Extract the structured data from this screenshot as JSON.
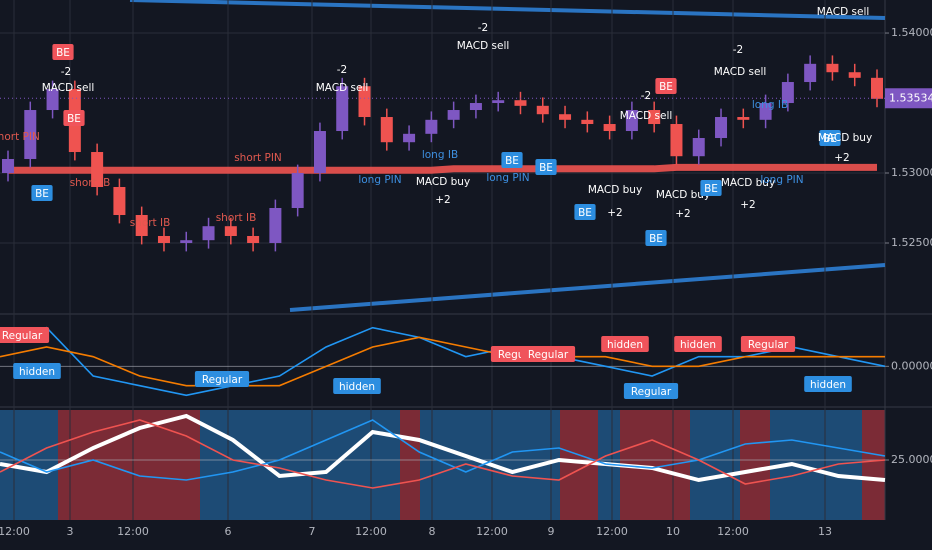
{
  "chart_data": [
    {
      "type": "candlestick",
      "open": [
        1.53,
        1.531,
        1.5345,
        1.536,
        1.5315,
        1.529,
        1.527,
        1.5255,
        1.525,
        1.5252,
        1.5262,
        1.5255,
        1.525,
        1.5275,
        1.53,
        1.533,
        1.5362,
        1.534,
        1.5322,
        1.5328,
        1.5338,
        1.5345,
        1.535,
        1.5352,
        1.5348,
        1.5342,
        1.5338,
        1.5335,
        1.533,
        1.5345,
        1.5335,
        1.5312,
        1.5325,
        1.534,
        1.5338,
        1.535,
        1.5365,
        1.5378,
        1.5372,
        1.5368
      ],
      "high": [
        1.5316,
        1.5351,
        1.5366,
        1.5366,
        1.5321,
        1.5296,
        1.5276,
        1.5261,
        1.5258,
        1.5268,
        1.5268,
        1.5261,
        1.5281,
        1.5306,
        1.5336,
        1.5368,
        1.5368,
        1.5346,
        1.5334,
        1.5344,
        1.5351,
        1.5356,
        1.5358,
        1.5358,
        1.5354,
        1.5348,
        1.5344,
        1.5341,
        1.5351,
        1.5351,
        1.5341,
        1.5331,
        1.5346,
        1.5346,
        1.5356,
        1.5371,
        1.5384,
        1.5384,
        1.5378,
        1.5374
      ],
      "low": [
        1.5294,
        1.5304,
        1.5339,
        1.5309,
        1.5284,
        1.5264,
        1.5249,
        1.5244,
        1.5244,
        1.5246,
        1.5249,
        1.5244,
        1.5244,
        1.5269,
        1.5294,
        1.5324,
        1.5334,
        1.5316,
        1.5316,
        1.5322,
        1.5332,
        1.5339,
        1.5344,
        1.5342,
        1.5336,
        1.5332,
        1.5329,
        1.5324,
        1.5324,
        1.5329,
        1.5306,
        1.5306,
        1.5319,
        1.5332,
        1.5332,
        1.5344,
        1.5359,
        1.5366,
        1.5362,
        1.5347
      ],
      "close": [
        1.531,
        1.5345,
        1.536,
        1.5315,
        1.529,
        1.527,
        1.5255,
        1.525,
        1.5252,
        1.5262,
        1.5255,
        1.525,
        1.5275,
        1.53,
        1.533,
        1.5362,
        1.534,
        1.5322,
        1.5328,
        1.5338,
        1.5345,
        1.535,
        1.5352,
        1.5348,
        1.5342,
        1.5338,
        1.5335,
        1.533,
        1.5345,
        1.5335,
        1.5312,
        1.5325,
        1.534,
        1.5338,
        1.535,
        1.5365,
        1.5378,
        1.5372,
        1.5368,
        1.5353
      ],
      "up_color": "#7e57c2",
      "down_color": "#ef5350",
      "ma": {
        "color": "#f05350",
        "values": [
          1.5302,
          1.5302,
          1.5302,
          1.5302,
          1.5302,
          1.5302,
          1.5302,
          1.5302,
          1.5302,
          1.5302,
          1.5302,
          1.5302,
          1.5302,
          1.5302,
          1.5302,
          1.5302,
          1.5302,
          1.5302,
          1.5302,
          1.5302,
          1.5303,
          1.5303,
          1.5303,
          1.5303,
          1.5303,
          1.5303,
          1.5303,
          1.5303,
          1.5303,
          1.5303,
          1.5304,
          1.5304,
          1.5304,
          1.5304,
          1.5304,
          1.5304,
          1.5304,
          1.5304,
          1.5304,
          1.5304
        ]
      },
      "ylim": [
        1.52007,
        1.54236
      ],
      "yticks": [
        {
          "value": 1.525,
          "label": "1.52500"
        },
        {
          "value": 1.53,
          "label": "1.53000"
        },
        {
          "value": 1.54,
          "label": "1.54000"
        }
      ],
      "last_price": {
        "value": 1.53534,
        "label": "1.53534"
      },
      "annotations": [
        {
          "text": "BE",
          "style": "sell-badge"
        },
        {
          "text": "-2",
          "style": "text"
        },
        {
          "text": "MACD sell",
          "style": "text"
        },
        {
          "text": "BE",
          "style": "sell-badge"
        },
        {
          "text": "BE",
          "style": "buy-badge"
        },
        {
          "text": "short PIN",
          "style": "short"
        },
        {
          "text": "short IB",
          "style": "short"
        },
        {
          "text": "short IB",
          "style": "short"
        },
        {
          "text": "short IB",
          "style": "short"
        },
        {
          "text": "short PIN",
          "style": "short"
        },
        {
          "text": "-2",
          "style": "text"
        },
        {
          "text": "MACD sell",
          "style": "text"
        },
        {
          "text": "long PIN",
          "style": "long"
        },
        {
          "text": "long IB",
          "style": "long"
        },
        {
          "text": "MACD buy",
          "style": "text"
        },
        {
          "text": "+2",
          "style": "text"
        },
        {
          "text": "-2",
          "style": "text"
        },
        {
          "text": "MACD sell",
          "style": "text"
        },
        {
          "text": "BE",
          "style": "buy-badge"
        },
        {
          "text": "BE",
          "style": "buy-badge"
        },
        {
          "text": "long PIN",
          "style": "long"
        },
        {
          "text": "BE",
          "style": "buy-badge"
        },
        {
          "text": "MACD buy",
          "style": "text"
        },
        {
          "text": "+2",
          "style": "text"
        },
        {
          "text": "BE",
          "style": "sell-badge"
        },
        {
          "text": "-2",
          "style": "text"
        },
        {
          "text": "MACD sell",
          "style": "text"
        },
        {
          "text": "BE",
          "style": "buy-badge"
        },
        {
          "text": "MACD buy",
          "style": "text"
        },
        {
          "text": "+2",
          "style": "text"
        },
        {
          "text": "BE",
          "style": "buy-badge"
        },
        {
          "text": "-2",
          "style": "text"
        },
        {
          "text": "MACD sell",
          "style": "text"
        },
        {
          "text": "MACD buy",
          "style": "text"
        },
        {
          "text": "+2",
          "style": "text"
        },
        {
          "text": "long IB",
          "style": "long"
        },
        {
          "text": "long PIN",
          "style": "long"
        },
        {
          "text": "MACD sell",
          "style": "text"
        },
        {
          "text": "BE",
          "style": "buy-badge"
        },
        {
          "text": "MACD buy",
          "style": "text"
        },
        {
          "text": "+2",
          "style": "text"
        }
      ]
    },
    {
      "type": "line",
      "series": [
        {
          "color": "#2196f3",
          "values": [
            0.0003,
            0.0004,
            -0.0001,
            -0.0002,
            -0.0003,
            -0.0002,
            -0.0001,
            0.0002,
            0.0004,
            0.0003,
            0.0001,
            0.0002,
            0.0001,
            0.0,
            -0.0001,
            0.0001,
            0.0001,
            0.0002,
            0.0001,
            0.0
          ]
        },
        {
          "color": "#f57c00",
          "values": [
            0.0001,
            0.0002,
            0.0001,
            -0.0001,
            -0.0002,
            -0.0002,
            -0.0002,
            0.0,
            0.0002,
            0.0003,
            0.0002,
            0.0001,
            0.0001,
            0.0001,
            0.0,
            0.0,
            0.0001,
            0.0001,
            0.0001,
            0.0001
          ]
        }
      ],
      "ylim": [
        -0.0004,
        0.0005
      ],
      "yticks": [
        {
          "value": 0,
          "label": "0.00000"
        }
      ],
      "annotations": [
        {
          "text": "Regular",
          "style": "sell-badge"
        },
        {
          "text": "hidden",
          "style": "buy-badge"
        },
        {
          "text": "Regular",
          "style": "buy-badge"
        },
        {
          "text": "hidden",
          "style": "buy-badge"
        },
        {
          "text": "Regular",
          "style": "sell-badge"
        },
        {
          "text": "Regular",
          "style": "sell-badge"
        },
        {
          "text": "hidden",
          "style": "sell-badge"
        },
        {
          "text": "hidden",
          "style": "sell-badge"
        },
        {
          "text": "Regular",
          "style": "sell-badge"
        },
        {
          "text": "Regular",
          "style": "buy-badge"
        },
        {
          "text": "hidden",
          "style": "buy-badge"
        }
      ]
    },
    {
      "type": "line",
      "series": [
        {
          "color": "#ffffff",
          "values": [
            24,
            22,
            28,
            33,
            36,
            30,
            21,
            22,
            32,
            30,
            26,
            22,
            25,
            24,
            23,
            20,
            22,
            24,
            21,
            20
          ]
        },
        {
          "color": "#2196f3",
          "values": [
            27,
            22,
            25,
            21,
            20,
            22,
            25,
            30,
            35,
            27,
            22,
            27,
            28,
            24,
            23,
            25,
            29,
            30,
            28,
            26
          ]
        },
        {
          "color": "#ef5350",
          "values": [
            22,
            28,
            32,
            35,
            31,
            25,
            23,
            20,
            18,
            20,
            24,
            21,
            20,
            26,
            30,
            25,
            19,
            21,
            24,
            25
          ]
        }
      ],
      "ylim": [
        10,
        37.5
      ],
      "yticks": [
        {
          "value": 25,
          "label": "25.00000"
        }
      ],
      "x_labels": [
        "12:00",
        "3",
        "12:00",
        "6",
        "7",
        "12:00",
        "8",
        "12:00",
        "9",
        "12:00",
        "10",
        "12:00",
        "13"
      ]
    }
  ]
}
